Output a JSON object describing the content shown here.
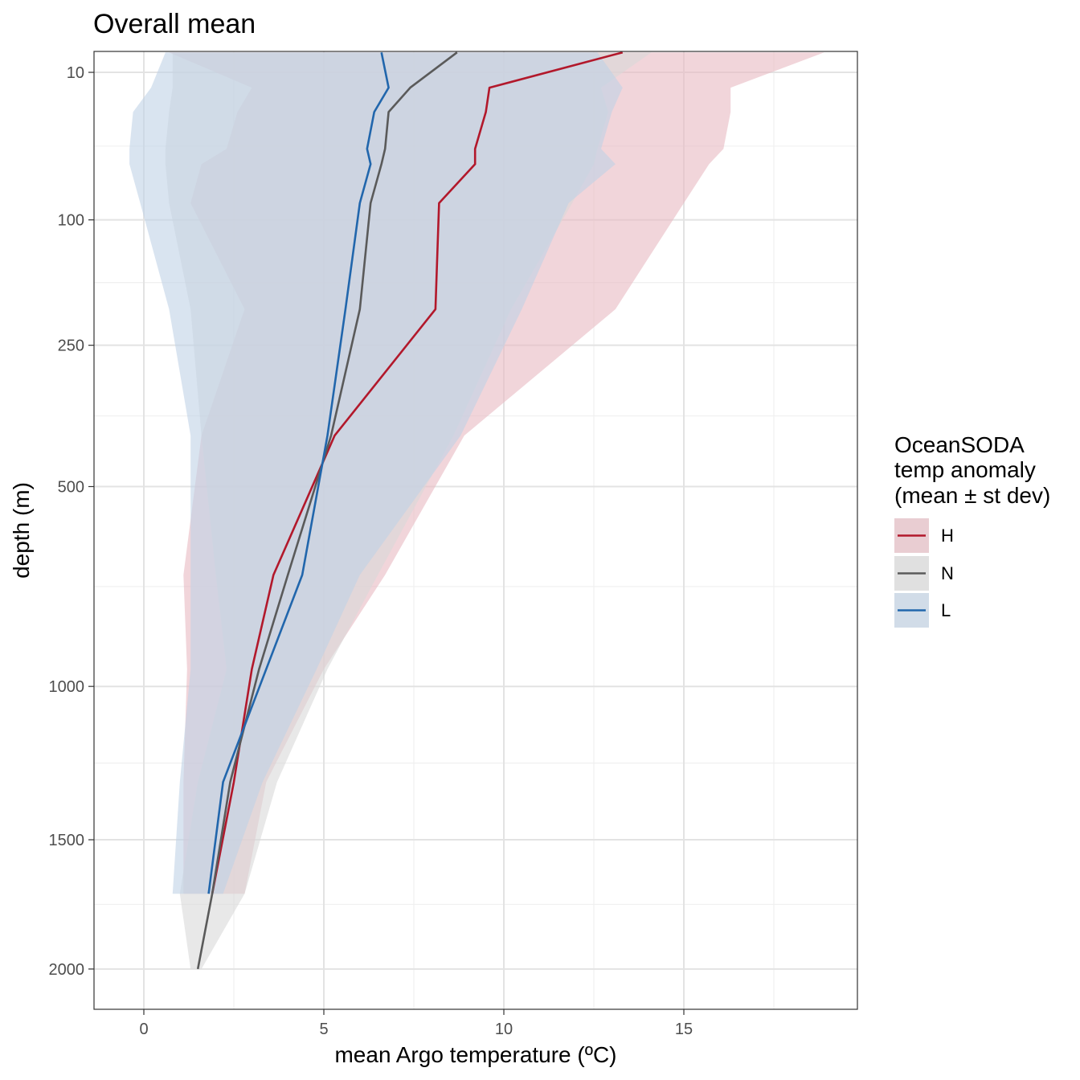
{
  "chart_data": {
    "type": "line",
    "title": "Overall mean",
    "xlabel": "mean Argo temperature (ºC)",
    "ylabel": "depth (m)",
    "xlim": [
      -1.4,
      19.8
    ],
    "ylim": [
      2100,
      5
    ],
    "y_scale": "reversed sqrt",
    "x_ticks": [
      0,
      5,
      10,
      15
    ],
    "x_tick_labels": [
      "0",
      "5",
      "10",
      "15"
    ],
    "y_ticks": [
      10,
      100,
      250,
      500,
      1000,
      1500,
      2000
    ],
    "y_tick_labels": [
      "10",
      "100",
      "250",
      "500",
      "1000",
      "1500",
      "2000"
    ],
    "grid": true,
    "legend": {
      "title_lines": [
        "OceanSODA",
        "temp anomaly",
        "(mean ± st dev)"
      ],
      "position": "right",
      "entries": [
        "H",
        "N",
        "L"
      ]
    },
    "series": [
      {
        "name": "H",
        "color": "#b2182b",
        "fill": "#e7b9c1",
        "depth": [
          5,
          15,
          25,
          45,
          55,
          85,
          200,
          400,
          700,
          950,
          1300,
          1700
        ],
        "mean": [
          13.3,
          9.6,
          9.5,
          9.2,
          9.2,
          8.2,
          8.1,
          5.3,
          3.6,
          3.0,
          2.5,
          1.9
        ],
        "lower": [
          0.7,
          3.0,
          2.6,
          2.3,
          1.6,
          1.3,
          2.8,
          1.6,
          1.1,
          1.2,
          1.1,
          1.1
        ],
        "upper": [
          18.9,
          16.3,
          16.3,
          16.1,
          15.7,
          15.0,
          13.1,
          8.9,
          6.7,
          5.0,
          3.4,
          2.8
        ]
      },
      {
        "name": "N",
        "color": "#5a5a5a",
        "fill": "#d9d9d9",
        "depth": [
          5,
          15,
          25,
          45,
          55,
          85,
          200,
          400,
          700,
          950,
          1300,
          1700,
          2000
        ],
        "mean": [
          8.7,
          7.4,
          6.8,
          6.7,
          6.6,
          6.3,
          6.0,
          5.2,
          4.0,
          3.2,
          2.4,
          1.9,
          1.5
        ],
        "lower": [
          0.8,
          0.8,
          0.7,
          0.6,
          0.6,
          0.7,
          1.3,
          1.6,
          2.0,
          2.3,
          1.5,
          1.0,
          1.3
        ],
        "upper": [
          14.1,
          12.7,
          12.9,
          12.6,
          12.5,
          11.9,
          10.2,
          8.6,
          6.5,
          5.1,
          3.7,
          2.8,
          1.6
        ]
      },
      {
        "name": "L",
        "color": "#2166ac",
        "fill": "#bfd2e6",
        "depth": [
          5,
          15,
          25,
          45,
          55,
          85,
          200,
          400,
          700,
          950,
          1300,
          1700
        ],
        "mean": [
          6.6,
          6.8,
          6.4,
          6.2,
          6.3,
          6.0,
          5.6,
          5.1,
          4.4,
          3.4,
          2.2,
          1.8
        ],
        "lower": [
          0.6,
          0.2,
          -0.3,
          -0.4,
          -0.4,
          -0.1,
          0.7,
          1.3,
          1.3,
          1.3,
          1.0,
          0.8
        ],
        "upper": [
          12.6,
          13.3,
          13.0,
          12.7,
          13.1,
          11.8,
          10.5,
          8.8,
          6.0,
          4.8,
          3.3,
          2.2
        ]
      }
    ]
  }
}
